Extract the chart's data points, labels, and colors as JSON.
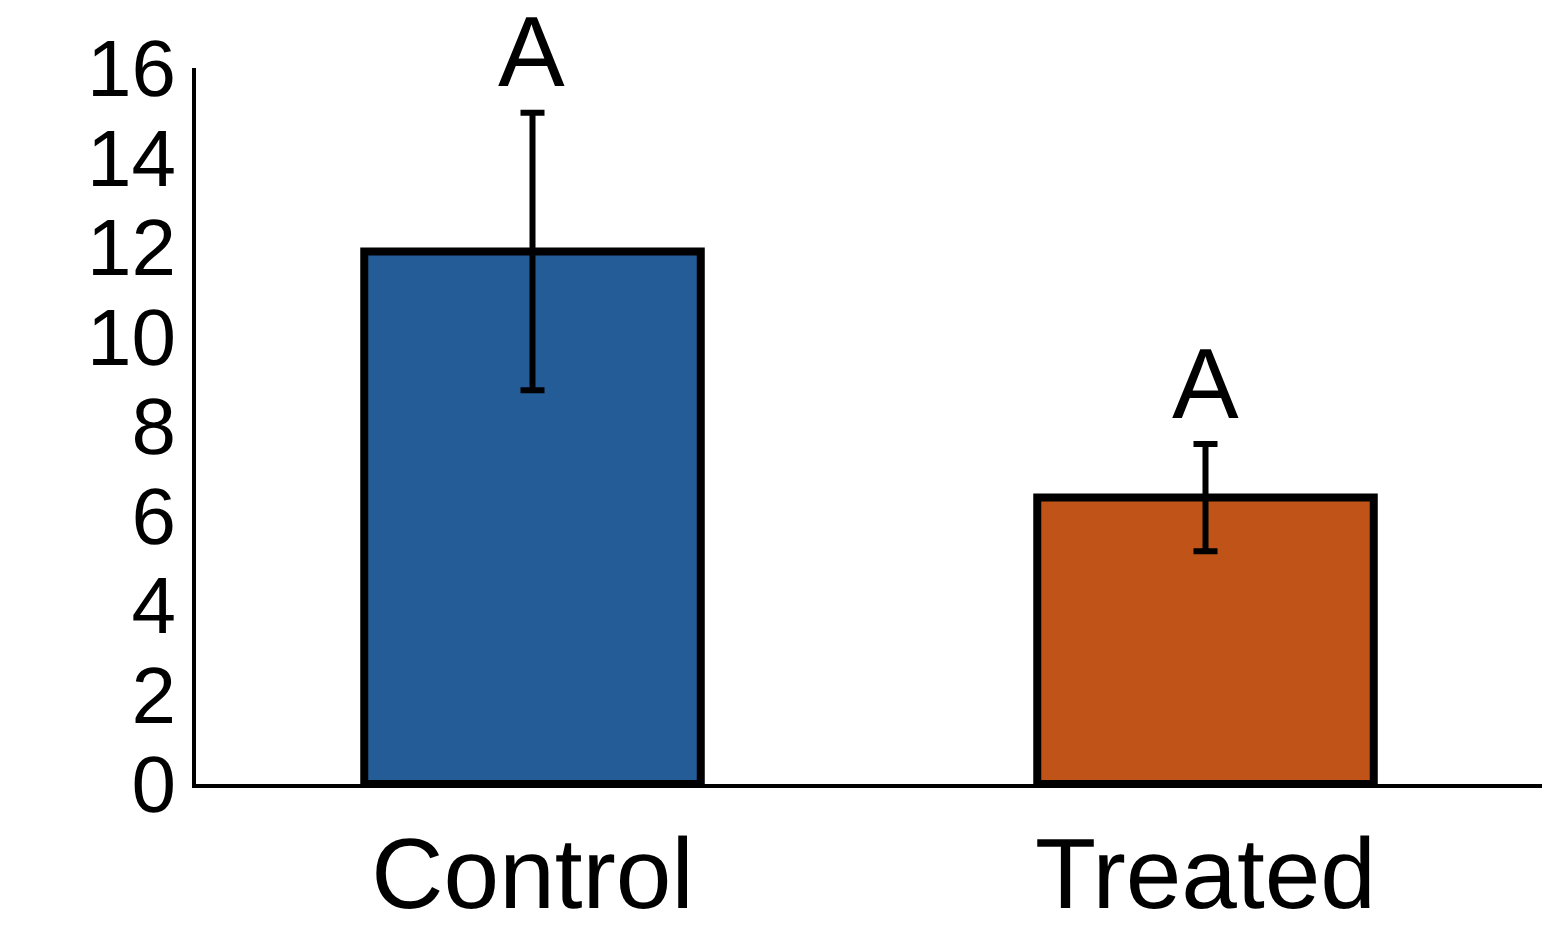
{
  "chart_data": {
    "type": "bar",
    "categories": [
      "Control",
      "Treated"
    ],
    "values": [
      11.9,
      6.4
    ],
    "colors": [
      "#245c98",
      "#c05418"
    ],
    "errors": [
      3.1,
      1.2
    ],
    "ylim": [
      0,
      16
    ],
    "yticks": [
      0,
      2,
      4,
      6,
      8,
      10,
      12,
      14,
      16
    ],
    "grid": false,
    "annotations": [
      {
        "text": "A",
        "x": "Control",
        "y": 15.0
      },
      {
        "text": "A",
        "x": "Treated",
        "y": 7.6
      }
    ]
  }
}
